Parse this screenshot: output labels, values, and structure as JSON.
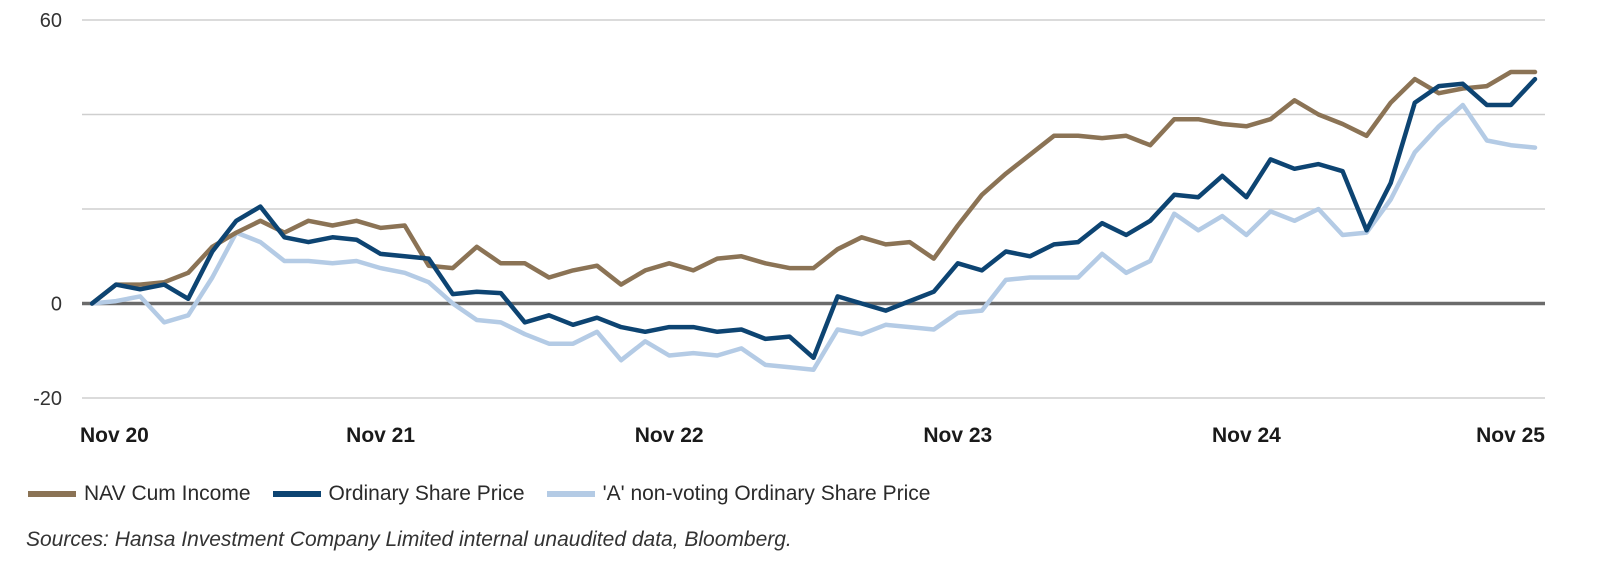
{
  "chart_data": {
    "type": "line",
    "title": "",
    "xlabel": "",
    "ylabel": "",
    "ylim": [
      -20,
      60
    ],
    "yticks": [
      60,
      0,
      -20
    ],
    "gridlines": [
      60,
      40,
      20,
      0,
      -20
    ],
    "x_tick_labels": [
      "Nov 20",
      "Nov 21",
      "Nov 22",
      "Nov 23",
      "Nov 24",
      "Nov 25"
    ],
    "x": [
      0,
      1,
      2,
      3,
      4,
      5,
      6,
      7,
      8,
      9,
      10,
      11,
      12,
      13,
      14,
      15,
      16,
      17,
      18,
      19,
      20,
      21,
      22,
      23,
      24,
      25,
      26,
      27,
      28,
      29,
      30,
      31,
      32,
      33,
      34,
      35,
      36,
      37,
      38,
      39,
      40,
      41,
      42,
      43,
      44,
      45,
      46,
      47,
      48,
      49,
      50,
      51,
      52,
      53,
      54,
      55,
      56,
      57,
      58,
      59,
      60
    ],
    "xlim": [
      0,
      60
    ],
    "series": [
      {
        "name": "NAV Cum Income",
        "color": "#8B7355",
        "values": [
          0,
          4,
          4,
          4.5,
          6.5,
          12,
          15,
          17.5,
          15,
          17.5,
          16.5,
          17.5,
          16,
          16.5,
          8,
          7.5,
          12,
          8.5,
          8.5,
          5.5,
          7,
          8,
          4,
          7,
          8.5,
          7,
          9.5,
          10,
          8.5,
          7.5,
          7.5,
          11.5,
          14,
          12.5,
          13,
          9.5,
          16.5,
          23,
          27.5,
          31.5,
          35.5,
          35.5,
          35,
          35.5,
          33.5,
          39,
          39,
          38,
          37.5,
          39,
          43,
          40,
          38,
          35.5,
          42.5,
          47.5,
          44.5,
          45.5,
          46,
          49,
          49
        ]
      },
      {
        "name": "Ordinary Share Price",
        "color": "#0D4472",
        "values": [
          0,
          4,
          3,
          4,
          1,
          11,
          17.5,
          20.5,
          14,
          13,
          14,
          13.5,
          10.5,
          10,
          9.5,
          2,
          2.5,
          2.2,
          -4,
          -2.5,
          -4.5,
          -3,
          -5,
          -6,
          -5,
          -5,
          -6,
          -5.5,
          -7.5,
          -7,
          -11.5,
          1.5,
          0,
          -1.5,
          0.5,
          2.5,
          8.5,
          7,
          11,
          10,
          12.5,
          13,
          17,
          14.5,
          17.5,
          23,
          22.5,
          27,
          22.5,
          30.5,
          28.5,
          29.5,
          28,
          15.5,
          25.5,
          42.5,
          46,
          46.5,
          42,
          42,
          47.5
        ]
      },
      {
        "name": "'A' non-voting Ordinary Share Price",
        "color": "#B4CBE5",
        "values": [
          0,
          0.5,
          1.5,
          -4,
          -2.5,
          5.5,
          15,
          13,
          9,
          9,
          8.5,
          9,
          7.5,
          6.5,
          4.5,
          0,
          -3.5,
          -4,
          -6.5,
          -8.5,
          -8.5,
          -6,
          -12,
          -8,
          -11,
          -10.5,
          -11,
          -9.5,
          -13,
          -13.5,
          -14,
          -5.5,
          -6.5,
          -4.5,
          -5,
          -5.5,
          -2,
          -1.5,
          5,
          5.5,
          5.5,
          5.5,
          10.5,
          6.5,
          9,
          19,
          15.5,
          18.5,
          14.5,
          19.5,
          17.5,
          20,
          14.5,
          15,
          22,
          32,
          37.5,
          42,
          34.5,
          33.5,
          33
        ]
      }
    ],
    "legend": {
      "position": "bottom-left",
      "entries": [
        "NAV Cum Income",
        "Ordinary Share Price",
        "'A' non-voting Ordinary Share Price"
      ]
    },
    "source_note": "Sources: Hansa Investment Company Limited internal unaudited data, Bloomberg."
  }
}
